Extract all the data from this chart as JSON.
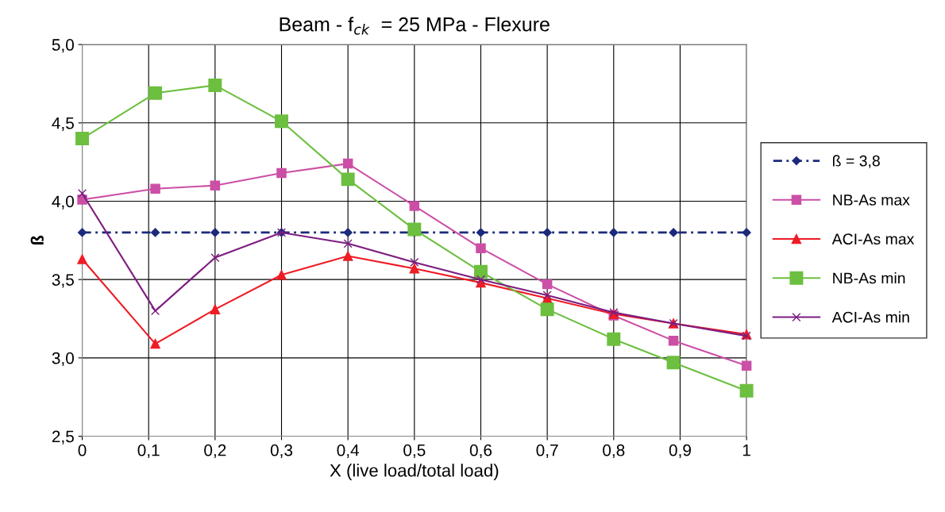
{
  "chart_data": {
    "type": "line",
    "title": "Beam - f$_{ck}$  = 25 MPa - Flexure",
    "xlabel": "X (live load/total load)",
    "ylabel": "ß",
    "x": [
      0,
      0.11,
      0.2,
      0.3,
      0.4,
      0.5,
      0.6,
      0.7,
      0.8,
      0.89,
      1
    ],
    "series": [
      {
        "name": "ß = 3,8",
        "color": "#1c2a7c",
        "marker": "diamond",
        "line_style": "dotted",
        "values": [
          3.8,
          3.8,
          3.8,
          3.8,
          3.8,
          3.8,
          3.8,
          3.8,
          3.8,
          3.8,
          3.8
        ]
      },
      {
        "name": "NB-As max",
        "color": "#cc4fa6",
        "marker": "square",
        "line_style": "solid",
        "values": [
          4.01,
          4.08,
          4.1,
          4.18,
          4.24,
          3.97,
          3.7,
          3.47,
          3.27,
          3.11,
          2.95
        ]
      },
      {
        "name": "ACI-As max",
        "color": "#ee1c25",
        "marker": "triangle",
        "line_style": "solid",
        "values": [
          3.63,
          3.09,
          3.31,
          3.53,
          3.65,
          3.57,
          3.48,
          3.38,
          3.28,
          3.22,
          3.15
        ]
      },
      {
        "name": "NB-As min",
        "color": "#6cbf3f",
        "marker": "square",
        "line_style": "solid",
        "values": [
          4.4,
          4.69,
          4.74,
          4.51,
          4.14,
          3.82,
          3.55,
          3.31,
          3.12,
          2.97,
          2.79
        ]
      },
      {
        "name": "ACI-As min",
        "color": "#7d1d80",
        "marker": "cross",
        "line_style": "solid",
        "values": [
          4.05,
          3.3,
          3.64,
          3.8,
          3.73,
          3.61,
          3.5,
          3.4,
          3.29,
          3.22,
          3.14
        ]
      }
    ],
    "xlim": [
      0,
      1
    ],
    "ylim": [
      2.5,
      5.0
    ],
    "xticks": [
      0,
      {
        "value": 0.1,
        "label": "0,1"
      },
      {
        "value": 0.2,
        "label": "0,2"
      },
      {
        "value": 0.3,
        "label": "0,3"
      },
      {
        "value": 0.4,
        "label": "0,4"
      },
      {
        "value": 0.5,
        "label": "0,5"
      },
      {
        "value": 0.6,
        "label": "0,6"
      },
      {
        "value": 0.7,
        "label": "0,7"
      },
      {
        "value": 0.8,
        "label": "0,8"
      },
      {
        "value": 0.9,
        "label": "0,9"
      },
      1
    ],
    "yticks": [
      {
        "value": 2.5,
        "label": "2,5"
      },
      {
        "value": 3.0,
        "label": "3,0"
      },
      {
        "value": 3.5,
        "label": "3,5"
      },
      {
        "value": 4.0,
        "label": "4,0"
      },
      {
        "value": 4.5,
        "label": "4,5"
      },
      {
        "value": 5.0,
        "label": "5,0"
      }
    ],
    "grid": true,
    "legend": "right"
  }
}
